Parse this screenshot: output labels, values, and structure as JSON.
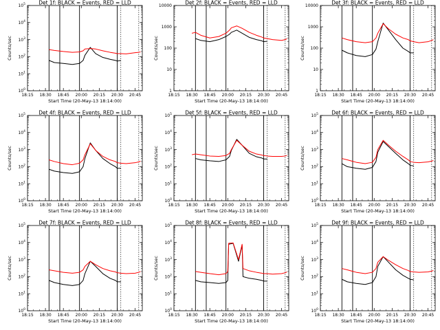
{
  "figure": {
    "time_ticks": [
      "18:15",
      "18:30",
      "18:45",
      "20:00",
      "20:15",
      "20:30",
      "20:45"
    ],
    "xlabel": "Start Time (20-May-13 18:14:00)",
    "ylabel": "Counts/sec",
    "colors": {
      "events": "#000000",
      "lld": "#ff0000",
      "background": "#ffffff"
    }
  },
  "chart_data": [
    {
      "type": "line",
      "title": "Det 1f: BLACK = Events, RED = LLD",
      "ylabel": "Counts/sec",
      "xlabel": "Start Time (20-May-13 18:14:00)",
      "yscale": "log",
      "ylim": [
        1,
        100000
      ],
      "y_tick_labels": [
        "10^0",
        "10^1",
        "10^2",
        "10^3",
        "10^4",
        "10^5"
      ],
      "x_tick_labels": [
        "18:15",
        "18:30",
        "18:45",
        "20:00",
        "20:15",
        "20:30",
        "20:45"
      ],
      "x_index_range": [
        0,
        6.4
      ],
      "solid_vlines": [
        1.2,
        1.8,
        2.9,
        5.0
      ],
      "dotted_vlines": [
        5.2,
        6.2
      ],
      "x": [
        1.0,
        1.2,
        1.5,
        2.0,
        2.5,
        2.9,
        3.1,
        3.2,
        3.5,
        3.8,
        4.2,
        4.6,
        4.9,
        5.0,
        5.2,
        5.5,
        6.0,
        6.2,
        6.3
      ],
      "series": [
        {
          "name": "Events",
          "color": "#000000",
          "y": [
            null,
            60,
            45,
            40,
            35,
            40,
            60,
            120,
            350,
            150,
            90,
            70,
            60,
            55,
            60,
            null,
            null,
            null,
            null
          ]
        },
        {
          "name": "LLD",
          "color": "#ff0000",
          "y": [
            null,
            260,
            230,
            200,
            180,
            190,
            220,
            280,
            300,
            280,
            220,
            180,
            160,
            150,
            150,
            145,
            170,
            180,
            190
          ]
        }
      ]
    },
    {
      "type": "line",
      "title": "Det 2f: BLACK = Events, RED = LLD",
      "ylabel": "Counts/sec",
      "xlabel": "Start Time (20-May-13 18:14:00)",
      "yscale": "log",
      "ylim": [
        1,
        10000
      ],
      "y_tick_labels": [
        "1",
        "10",
        "100",
        "1000",
        "10000"
      ],
      "x_tick_labels": [
        "18:15",
        "18:30",
        "18:45",
        "20:00",
        "20:15",
        "20:30",
        "20:45"
      ],
      "x_index_range": [
        0,
        6.4
      ],
      "solid_vlines": [
        1.2,
        1.8,
        2.9,
        5.0
      ],
      "dotted_vlines": [
        5.2,
        6.2
      ],
      "x": [
        1.0,
        1.2,
        1.5,
        2.0,
        2.5,
        2.9,
        3.1,
        3.2,
        3.5,
        3.8,
        4.2,
        4.6,
        4.9,
        5.0,
        5.2,
        5.5,
        6.0,
        6.2,
        6.3
      ],
      "series": [
        {
          "name": "Events",
          "color": "#000000",
          "y": [
            null,
            280,
            230,
            200,
            250,
            350,
            450,
            550,
            700,
            500,
            320,
            250,
            220,
            200,
            210,
            null,
            null,
            null,
            null
          ]
        },
        {
          "name": "LLD",
          "color": "#ff0000",
          "y": [
            500,
            550,
            400,
            300,
            350,
            500,
            700,
            900,
            1100,
            850,
            550,
            400,
            330,
            300,
            280,
            250,
            230,
            250,
            280
          ]
        }
      ]
    },
    {
      "type": "line",
      "title": "Det 3f: BLACK = Events, RED = LLD",
      "ylabel": "Counts/sec",
      "xlabel": "Start Time (20-May-13 18:14:00)",
      "yscale": "log",
      "ylim": [
        1,
        10000
      ],
      "y_tick_labels": [
        "1",
        "10",
        "100",
        "1000",
        "10000"
      ],
      "x_tick_labels": [
        "18:15",
        "18:30",
        "18:45",
        "20:00",
        "20:15",
        "20:30",
        "20:45"
      ],
      "x_index_range": [
        0,
        6.4
      ],
      "solid_vlines": [
        1.2,
        1.8,
        2.9,
        5.0
      ],
      "dotted_vlines": [
        5.2,
        6.2
      ],
      "x": [
        1.0,
        1.2,
        1.5,
        2.0,
        2.5,
        2.9,
        3.1,
        3.2,
        3.5,
        3.8,
        4.2,
        4.6,
        4.9,
        5.0,
        5.2,
        5.5,
        6.0,
        6.2,
        6.3
      ],
      "series": [
        {
          "name": "Events",
          "color": "#000000",
          "y": [
            null,
            80,
            60,
            45,
            40,
            50,
            90,
            200,
            1500,
            700,
            250,
            100,
            70,
            60,
            60,
            null,
            null,
            null,
            null
          ]
        },
        {
          "name": "LLD",
          "color": "#ff0000",
          "y": [
            null,
            300,
            250,
            200,
            180,
            200,
            300,
            500,
            1400,
            800,
            450,
            300,
            250,
            220,
            200,
            180,
            200,
            230,
            250
          ]
        }
      ]
    },
    {
      "type": "line",
      "title": "Det 4f: BLACK = Events, RED = LLD",
      "ylabel": "Counts/sec",
      "xlabel": "Start Time (20-May-13 18:14:00)",
      "yscale": "log",
      "ylim": [
        1,
        100000
      ],
      "y_tick_labels": [
        "10^0",
        "10^1",
        "10^2",
        "10^3",
        "10^4",
        "10^5"
      ],
      "x_tick_labels": [
        "18:15",
        "18:30",
        "18:45",
        "20:00",
        "20:15",
        "20:30",
        "20:45"
      ],
      "x_index_range": [
        0,
        6.4
      ],
      "solid_vlines": [
        1.2,
        1.8,
        2.9,
        5.0
      ],
      "dotted_vlines": [
        5.2,
        6.2
      ],
      "x": [
        1.0,
        1.2,
        1.5,
        2.0,
        2.5,
        2.9,
        3.1,
        3.2,
        3.5,
        3.8,
        4.2,
        4.6,
        4.9,
        5.0,
        5.2,
        5.5,
        6.0,
        6.2,
        6.3
      ],
      "series": [
        {
          "name": "Events",
          "color": "#000000",
          "y": [
            null,
            70,
            55,
            45,
            40,
            50,
            100,
            300,
            2500,
            900,
            300,
            150,
            100,
            80,
            80,
            null,
            null,
            null,
            null
          ]
        },
        {
          "name": "LLD",
          "color": "#ff0000",
          "y": [
            null,
            250,
            200,
            150,
            130,
            160,
            250,
            500,
            2200,
            900,
            400,
            250,
            200,
            170,
            160,
            150,
            170,
            190,
            210
          ]
        }
      ]
    },
    {
      "type": "line",
      "title": "Det 5f: BLACK = Events, RED = LLD",
      "ylabel": "Counts/sec",
      "xlabel": "Start Time (20-May-13 18:14:00)",
      "yscale": "log",
      "ylim": [
        1,
        100000
      ],
      "y_tick_labels": [
        "10^0",
        "10^1",
        "10^2",
        "10^3",
        "10^4",
        "10^5"
      ],
      "x_tick_labels": [
        "18:15",
        "18:30",
        "18:45",
        "20:00",
        "20:15",
        "20:30",
        "20:45"
      ],
      "x_index_range": [
        0,
        6.4
      ],
      "solid_vlines": [
        1.2,
        1.8,
        2.9,
        5.0
      ],
      "dotted_vlines": [
        5.2,
        6.2
      ],
      "x": [
        1.0,
        1.2,
        1.5,
        2.0,
        2.5,
        2.9,
        3.1,
        3.2,
        3.5,
        3.8,
        4.2,
        4.6,
        4.9,
        5.0,
        5.2,
        5.5,
        6.0,
        6.2,
        6.3
      ],
      "series": [
        {
          "name": "Events",
          "color": "#000000",
          "y": [
            null,
            300,
            250,
            220,
            200,
            250,
            400,
            900,
            4000,
            1800,
            600,
            380,
            320,
            280,
            280,
            null,
            null,
            null,
            null
          ]
        },
        {
          "name": "LLD",
          "color": "#ff0000",
          "y": [
            500,
            550,
            500,
            420,
            400,
            450,
            600,
            1000,
            3500,
            1800,
            800,
            550,
            480,
            450,
            420,
            400,
            400,
            420,
            450
          ]
        }
      ]
    },
    {
      "type": "line",
      "title": "Det 6f: BLACK = Events, RED = LLD",
      "ylabel": "Counts/sec",
      "xlabel": "Start Time (20-May-13 18:14:00)",
      "yscale": "log",
      "ylim": [
        1,
        100000
      ],
      "y_tick_labels": [
        "10^0",
        "10^1",
        "10^2",
        "10^3",
        "10^4",
        "10^5"
      ],
      "x_tick_labels": [
        "18:15",
        "18:30",
        "18:45",
        "20:00",
        "20:15",
        "20:30",
        "20:45"
      ],
      "x_index_range": [
        0,
        6.4
      ],
      "solid_vlines": [
        1.2,
        1.8,
        2.9,
        5.0
      ],
      "dotted_vlines": [
        5.2,
        6.2
      ],
      "x": [
        1.0,
        1.2,
        1.5,
        2.0,
        2.5,
        2.9,
        3.1,
        3.2,
        3.5,
        3.8,
        4.2,
        4.6,
        4.9,
        5.0,
        5.2,
        5.5,
        6.0,
        6.2,
        6.3
      ],
      "series": [
        {
          "name": "Events",
          "color": "#000000",
          "y": [
            null,
            150,
            100,
            80,
            70,
            90,
            200,
            700,
            3000,
            1500,
            600,
            250,
            150,
            120,
            110,
            null,
            null,
            null,
            null
          ]
        },
        {
          "name": "LLD",
          "color": "#ff0000",
          "y": [
            null,
            300,
            250,
            180,
            150,
            180,
            350,
            1000,
            3500,
            1800,
            800,
            400,
            250,
            200,
            180,
            170,
            190,
            210,
            230
          ]
        }
      ]
    },
    {
      "type": "line",
      "title": "Det 7f: BLACK = Events, RED = LLD",
      "ylabel": "Counts/sec",
      "xlabel": "Start Time (20-May-13 18:14:00)",
      "yscale": "log",
      "ylim": [
        1,
        100000
      ],
      "y_tick_labels": [
        "10^0",
        "10^1",
        "10^2",
        "10^3",
        "10^4",
        "10^5"
      ],
      "x_tick_labels": [
        "18:15",
        "18:30",
        "18:45",
        "20:00",
        "20:15",
        "20:30",
        "20:45"
      ],
      "x_index_range": [
        0,
        6.4
      ],
      "solid_vlines": [
        1.2,
        1.8,
        2.9,
        5.0
      ],
      "dotted_vlines": [
        5.2,
        6.2
      ],
      "x": [
        1.0,
        1.2,
        1.5,
        2.0,
        2.5,
        2.9,
        3.1,
        3.2,
        3.5,
        3.8,
        4.2,
        4.6,
        4.9,
        5.0,
        5.2,
        5.5,
        6.0,
        6.2,
        6.3
      ],
      "series": [
        {
          "name": "Events",
          "color": "#000000",
          "y": [
            null,
            60,
            45,
            35,
            30,
            35,
            60,
            150,
            800,
            400,
            150,
            80,
            60,
            50,
            50,
            null,
            null,
            null,
            null
          ]
        },
        {
          "name": "LLD",
          "color": "#ff0000",
          "y": [
            null,
            250,
            220,
            180,
            160,
            180,
            250,
            400,
            800,
            500,
            300,
            220,
            190,
            170,
            160,
            150,
            160,
            180,
            200
          ]
        }
      ]
    },
    {
      "type": "line",
      "title": "Det 8f: BLACK = Events, RED = LLD",
      "ylabel": "Counts/sec",
      "xlabel": "Start Time (20-May-13 18:14:00)",
      "yscale": "log",
      "ylim": [
        1,
        100000
      ],
      "y_tick_labels": [
        "10^0",
        "10^1",
        "10^2",
        "10^3",
        "10^4",
        "10^5"
      ],
      "x_tick_labels": [
        "18:15",
        "18:30",
        "18:45",
        "20:00",
        "20:15",
        "20:30",
        "20:45"
      ],
      "x_index_range": [
        0,
        6.4
      ],
      "solid_vlines": [
        1.2,
        1.8,
        2.9,
        5.0
      ],
      "dotted_vlines": [
        5.2,
        6.2
      ],
      "x": [
        1.0,
        1.2,
        1.5,
        2.0,
        2.5,
        2.9,
        3.0,
        3.05,
        3.3,
        3.6,
        3.8,
        3.85,
        4.2,
        4.6,
        4.9,
        5.0,
        5.2,
        5.5,
        6.0,
        6.2,
        6.3
      ],
      "series": [
        {
          "name": "Events",
          "color": "#000000",
          "y": [
            null,
            60,
            50,
            45,
            40,
            45,
            60,
            8000,
            9000,
            800,
            7000,
            100,
            80,
            70,
            60,
            55,
            55,
            null,
            null,
            null,
            null
          ]
        },
        {
          "name": "LLD",
          "color": "#ff0000",
          "y": [
            null,
            200,
            180,
            150,
            130,
            150,
            200,
            9000,
            9500,
            1000,
            8000,
            300,
            220,
            180,
            160,
            150,
            150,
            140,
            150,
            170,
            190
          ]
        }
      ]
    },
    {
      "type": "line",
      "title": "Det 9f: BLACK = Events, RED = LLD",
      "ylabel": "Counts/sec",
      "xlabel": "Start Time (20-May-13 18:14:00)",
      "yscale": "log",
      "ylim": [
        1,
        100000
      ],
      "y_tick_labels": [
        "10^0",
        "10^1",
        "10^2",
        "10^3",
        "10^4",
        "10^5"
      ],
      "x_tick_labels": [
        "18:15",
        "18:30",
        "18:45",
        "20:00",
        "20:15",
        "20:30",
        "20:45"
      ],
      "x_index_range": [
        0,
        6.4
      ],
      "solid_vlines": [
        1.2,
        1.8,
        2.9,
        5.0
      ],
      "dotted_vlines": [
        5.2,
        6.2
      ],
      "x": [
        1.0,
        1.2,
        1.5,
        2.0,
        2.5,
        2.9,
        3.1,
        3.2,
        3.5,
        3.8,
        4.2,
        4.6,
        4.9,
        5.0,
        5.2,
        5.5,
        6.0,
        6.2,
        6.3
      ],
      "series": [
        {
          "name": "Events",
          "color": "#000000",
          "y": [
            null,
            70,
            50,
            40,
            35,
            45,
            100,
            400,
            1500,
            700,
            250,
            120,
            80,
            70,
            65,
            null,
            null,
            null,
            null
          ]
        },
        {
          "name": "LLD",
          "color": "#ff0000",
          "y": [
            null,
            300,
            250,
            180,
            150,
            180,
            300,
            700,
            1500,
            900,
            500,
            300,
            230,
            200,
            190,
            180,
            190,
            210,
            230
          ]
        }
      ]
    }
  ]
}
